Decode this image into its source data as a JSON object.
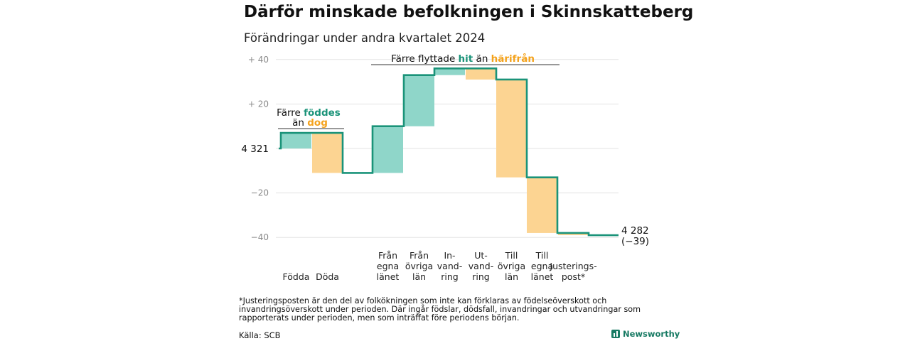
{
  "title": "Därför minskade befolkningen i Skinnskatteberg",
  "subtitle": "Förändringar under andra kvartalet 2024",
  "colors": {
    "teal": "#1a9379",
    "teal_fill": "#8fd6c9",
    "orange": "#f4a21b",
    "orange_fill": "#fcd492"
  },
  "chart_data": {
    "type": "waterfall",
    "start_label": "4 321",
    "start_value": 0,
    "end_label": "4 282",
    "end_change_label": "(−39)",
    "y_ticks": [
      {
        "value": 40,
        "label": "+  40"
      },
      {
        "value": 20,
        "label": "+  20"
      },
      {
        "value": -20,
        "label": "−20"
      },
      {
        "value": -40,
        "label": "−40"
      }
    ],
    "ylim": [
      -44,
      44
    ],
    "categories": [
      {
        "lines": [
          "Födda"
        ],
        "delta": 7,
        "kind": "plus"
      },
      {
        "lines": [
          "Döda"
        ],
        "delta": -18,
        "kind": "minus"
      },
      {
        "lines": [
          "Från",
          "egna",
          "länet"
        ],
        "delta": 21,
        "kind": "plus"
      },
      {
        "lines": [
          "Från",
          "övriga",
          "län"
        ],
        "delta": 23,
        "kind": "plus"
      },
      {
        "lines": [
          "In-",
          "vand-",
          "ring"
        ],
        "delta": 3,
        "kind": "plus"
      },
      {
        "lines": [
          "Ut-",
          "vand-",
          "ring"
        ],
        "delta": -5,
        "kind": "minus"
      },
      {
        "lines": [
          "Till",
          "övriga",
          "län"
        ],
        "delta": -44,
        "kind": "minus"
      },
      {
        "lines": [
          "Till",
          "egna",
          "länet"
        ],
        "delta": -25,
        "kind": "minus"
      },
      {
        "lines": [
          "Justerings-",
          "post*"
        ],
        "delta": -1,
        "kind": "minus"
      }
    ],
    "annotations": {
      "births": {
        "line1": "Färre ",
        "line1_hl": "föddes",
        "line2": "än ",
        "line2_hl": "dog"
      },
      "migration": {
        "text1": "Färre flyttade ",
        "hl1": "hit",
        "text2": " än ",
        "hl2": "härifrån"
      }
    }
  },
  "footnote": "*Justeringsposten är den del av folkökningen som inte kan förklaras av födelseöverskott och invandringsöverskott under perioden. Där ingår födslar, dödsfall, invandringar och utvandringar som rapporterats under perioden, men som inträffat före periodens början.",
  "source": "Källa: SCB",
  "brand": "Newsworthy"
}
